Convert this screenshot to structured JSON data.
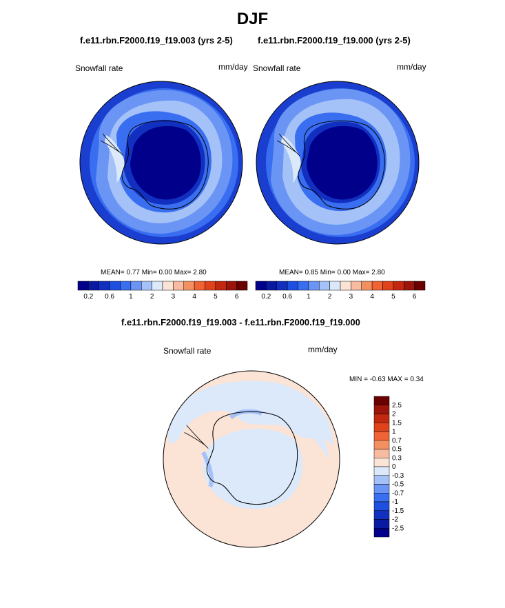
{
  "title": "DJF",
  "panels": [
    {
      "case_title": "f.e11.rbn.F2000.f19_f19.003 (yrs 2-5)",
      "left_label": "Snowfall rate",
      "units": "mm/day",
      "stats": {
        "mean_label": "MEAN=",
        "mean": "0.77",
        "min_label": "Min=",
        "min": "0.00",
        "max_label": "Max=",
        "max": "2.80"
      }
    },
    {
      "case_title": "f.e11.rbn.F2000.f19_f19.000 (yrs 2-5)",
      "left_label": "Snowfall rate",
      "units": "mm/day",
      "stats": {
        "mean_label": "MEAN=",
        "mean": "0.85",
        "min_label": "Min=",
        "min": "0.00",
        "max_label": "Max=",
        "max": "2.80"
      }
    }
  ],
  "diff_panel": {
    "title": "f.e11.rbn.F2000.f19_f19.003 - f.e11.rbn.F2000.f19_f19.000",
    "left_label": "Snowfall rate",
    "units": "mm/day",
    "minmax_text": "MIN =  -0.63 MAX =   0.34"
  },
  "colorbar_top": {
    "colors": [
      "#00008b",
      "#0a1aa0",
      "#1230c0",
      "#1f4fe0",
      "#3a6ef0",
      "#6a95f4",
      "#a4c1f8",
      "#dbe9fb",
      "#fbe3d6",
      "#f8bba0",
      "#f4905f",
      "#ef6334",
      "#e0431c",
      "#c22810",
      "#9b150a",
      "#6b0000"
    ],
    "labels": [
      "0.2",
      "0.6",
      "1",
      "2",
      "3",
      "4",
      "5",
      "6"
    ]
  },
  "colorbar_diff": {
    "colors": [
      "#00008b",
      "#0a1aa0",
      "#1230c0",
      "#1f4fe0",
      "#3a6ef0",
      "#6a95f4",
      "#a4c1f8",
      "#dbe9fb",
      "#fbe3d6",
      "#f8bba0",
      "#f4905f",
      "#ef6334",
      "#e0431c",
      "#c22810",
      "#9b150a",
      "#6b0000"
    ],
    "labels": [
      "-2.5",
      "-2",
      "-1.5",
      "-1",
      "-0.7",
      "-0.5",
      "-0.3",
      "0",
      "0.3",
      "0.5",
      "0.7",
      "1",
      "1.5",
      "2",
      "2.5"
    ]
  },
  "chart_data": [
    {
      "type": "heatmap",
      "projection": "south-polar-stereographic",
      "title": "f.e11.rbn.F2000.f19_f19.003 (yrs 2-5)",
      "field": "Snowfall rate",
      "units": "mm/day",
      "mean": 0.77,
      "min": 0.0,
      "max": 2.8,
      "contour_levels": [
        0.2,
        0.4,
        0.6,
        0.8,
        1,
        1.5,
        2,
        2.5,
        3,
        3.5,
        4,
        4.5,
        5,
        5.5,
        6
      ]
    },
    {
      "type": "heatmap",
      "projection": "south-polar-stereographic",
      "title": "f.e11.rbn.F2000.f19_f19.000 (yrs 2-5)",
      "field": "Snowfall rate",
      "units": "mm/day",
      "mean": 0.85,
      "min": 0.0,
      "max": 2.8,
      "contour_levels": [
        0.2,
        0.4,
        0.6,
        0.8,
        1,
        1.5,
        2,
        2.5,
        3,
        3.5,
        4,
        4.5,
        5,
        5.5,
        6
      ]
    },
    {
      "type": "heatmap",
      "projection": "south-polar-stereographic",
      "title": "f.e11.rbn.F2000.f19_f19.003 - f.e11.rbn.F2000.f19_f19.000",
      "field": "Snowfall rate",
      "units": "mm/day",
      "min": -0.63,
      "max": 0.34,
      "contour_levels": [
        -2.5,
        -2,
        -1.5,
        -1,
        -0.7,
        -0.5,
        -0.3,
        0,
        0.3,
        0.5,
        0.7,
        1,
        1.5,
        2,
        2.5
      ]
    }
  ]
}
